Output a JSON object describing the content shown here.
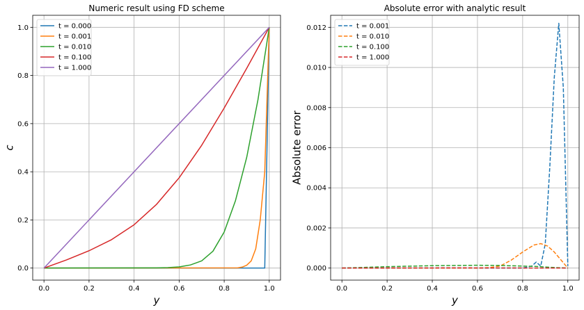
{
  "chart_data": [
    {
      "type": "line",
      "title": "Numeric result using FD scheme",
      "xlabel": "y",
      "ylabel": "c",
      "xlim": [
        -0.05,
        1.05
      ],
      "ylim": [
        -0.05,
        1.05
      ],
      "xticks": [
        "0.0",
        "0.2",
        "0.4",
        "0.6",
        "0.8",
        "1.0"
      ],
      "yticks": [
        "0.0",
        "0.2",
        "0.4",
        "0.6",
        "0.8",
        "1.0"
      ],
      "grid": true,
      "legend_position": "top-left",
      "series": [
        {
          "name": "t = 0.000",
          "color": "#1f77b4",
          "x": [
            0,
            0.98,
            1.0
          ],
          "y": [
            0,
            0,
            1
          ]
        },
        {
          "name": "t = 0.001",
          "color": "#ff7f0e",
          "x": [
            0,
            0.86,
            0.88,
            0.9,
            0.92,
            0.94,
            0.96,
            0.98,
            1.0
          ],
          "y": [
            0,
            0.001,
            0.004,
            0.012,
            0.03,
            0.08,
            0.2,
            0.4,
            1.0
          ]
        },
        {
          "name": "t = 0.010",
          "color": "#2ca02c",
          "x": [
            0,
            0.5,
            0.55,
            0.6,
            0.65,
            0.7,
            0.75,
            0.8,
            0.85,
            0.9,
            0.95,
            1.0
          ],
          "y": [
            0,
            0.001,
            0.002,
            0.005,
            0.013,
            0.03,
            0.07,
            0.15,
            0.28,
            0.46,
            0.7,
            1.0
          ]
        },
        {
          "name": "t = 0.100",
          "color": "#d62728",
          "x": [
            0,
            0.1,
            0.2,
            0.3,
            0.4,
            0.5,
            0.6,
            0.7,
            0.8,
            0.9,
            1.0
          ],
          "y": [
            0,
            0.034,
            0.072,
            0.118,
            0.18,
            0.265,
            0.375,
            0.51,
            0.665,
            0.83,
            1.0
          ]
        },
        {
          "name": "t = 1.000",
          "color": "#9467bd",
          "x": [
            0,
            1.0
          ],
          "y": [
            0,
            1.0
          ]
        }
      ]
    },
    {
      "type": "line",
      "title": "Absolute error with analytic result",
      "xlabel": "y",
      "ylabel": "Absolute error",
      "xlim": [
        -0.05,
        1.05
      ],
      "ylim": [
        -0.0006,
        0.0126
      ],
      "xticks": [
        "0.0",
        "0.2",
        "0.4",
        "0.6",
        "0.8",
        "1.0"
      ],
      "yticks": [
        "0.000",
        "0.002",
        "0.004",
        "0.006",
        "0.008",
        "0.010",
        "0.012"
      ],
      "grid": true,
      "legend_position": "top-left",
      "line_style": "dashed",
      "series": [
        {
          "name": "t = 0.001",
          "color": "#1f77b4",
          "x": [
            0,
            0.8,
            0.84,
            0.86,
            0.88,
            0.9,
            0.92,
            0.94,
            0.96,
            0.98,
            1.0
          ],
          "y": [
            0,
            0,
            0.0001,
            0.0003,
            0.0001,
            0.0012,
            0.005,
            0.0095,
            0.0122,
            0.009,
            0.0001
          ]
        },
        {
          "name": "t = 0.010",
          "color": "#ff7f0e",
          "x": [
            0,
            0.6,
            0.65,
            0.7,
            0.75,
            0.8,
            0.85,
            0.88,
            0.91,
            0.94,
            0.97,
            1.0
          ],
          "y": [
            0,
            0,
            2e-05,
            0.0001,
            0.0004,
            0.0008,
            0.00115,
            0.00122,
            0.0011,
            0.0008,
            0.0004,
            0.0
          ]
        },
        {
          "name": "t = 0.100",
          "color": "#2ca02c",
          "x": [
            0,
            0.2,
            0.4,
            0.6,
            0.7,
            0.8,
            0.86,
            0.92,
            1.0
          ],
          "y": [
            0,
            7e-05,
            0.00012,
            0.00014,
            0.00013,
            0.0001,
            8e-05,
            4e-05,
            0
          ]
        },
        {
          "name": "t = 1.000",
          "color": "#d62728",
          "x": [
            0,
            0.5,
            1.0
          ],
          "y": [
            0,
            1e-05,
            0
          ]
        }
      ]
    }
  ]
}
